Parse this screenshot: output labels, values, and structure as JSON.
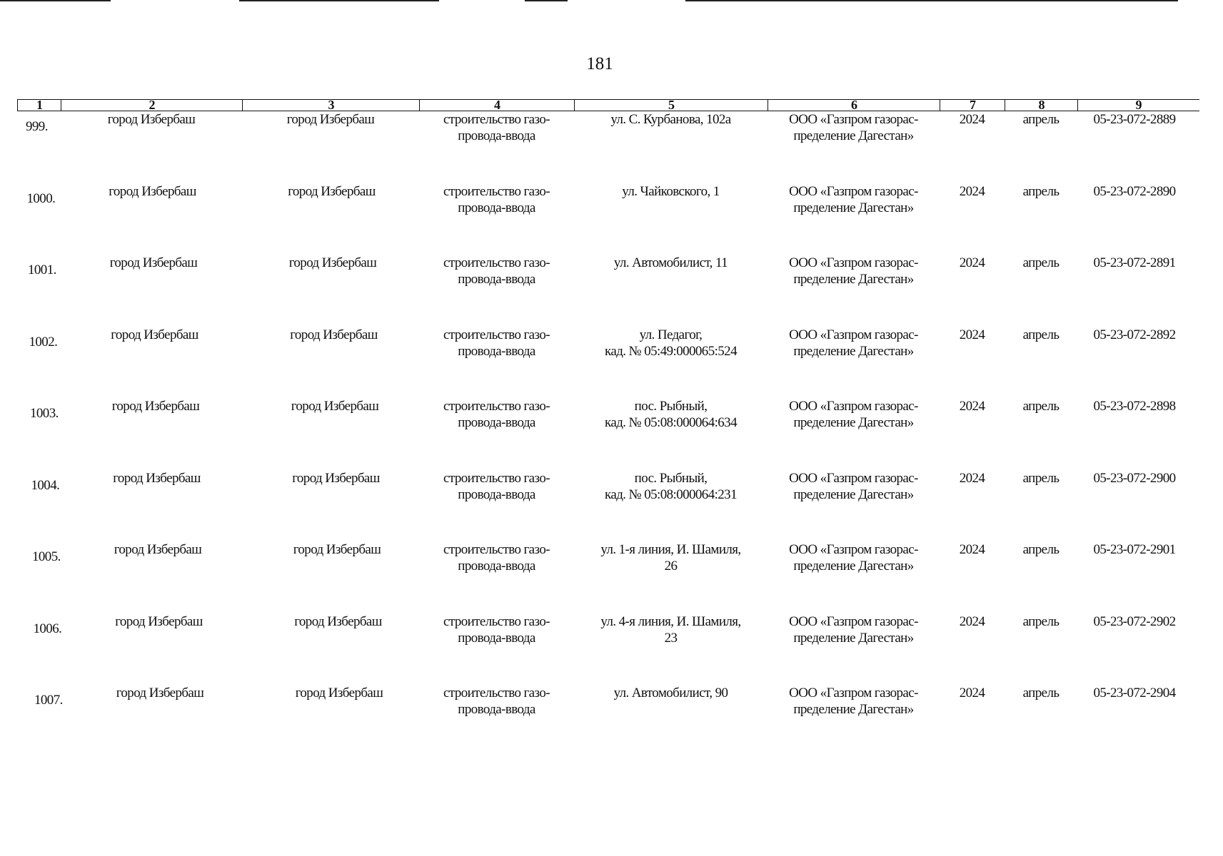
{
  "page_number": "181",
  "table": {
    "headers": [
      "1",
      "2",
      "3",
      "4",
      "5",
      "6",
      "7",
      "8",
      "9"
    ],
    "rows": [
      [
        "999.",
        "город Избербаш",
        "город Избербаш",
        "строительство газо-\nпровода-ввода",
        "ул. С. Курбанова, 102а",
        "ООО «Газпром газорас-\nпределение Дагестан»",
        "2024",
        "апрель",
        "05-23-072-2889"
      ],
      [
        "1000.",
        "город Избербаш",
        "город Избербаш",
        "строительство газо-\nпровода-ввода",
        "ул. Чайковского, 1",
        "ООО «Газпром газорас-\nпределение Дагестан»",
        "2024",
        "апрель",
        "05-23-072-2890"
      ],
      [
        "1001.",
        "город Избербаш",
        "город Избербаш",
        "строительство газо-\nпровода-ввода",
        "ул. Автомобилист, 11",
        "ООО «Газпром газорас-\nпределение Дагестан»",
        "2024",
        "апрель",
        "05-23-072-2891"
      ],
      [
        "1002.",
        "город Избербаш",
        "город Избербаш",
        "строительство газо-\nпровода-ввода",
        "ул. Педагог,\nкад. № 05:49:000065:524",
        "ООО «Газпром газорас-\nпределение Дагестан»",
        "2024",
        "апрель",
        "05-23-072-2892"
      ],
      [
        "1003.",
        "город Избербаш",
        "город Избербаш",
        "строительство газо-\nпровода-ввода",
        "пос. Рыбный,\nкад. № 05:08:000064:634",
        "ООО «Газпром газорас-\nпределение Дагестан»",
        "2024",
        "апрель",
        "05-23-072-2898"
      ],
      [
        "1004.",
        "город Избербаш",
        "город Избербаш",
        "строительство газо-\nпровода-ввода",
        "пос. Рыбный,\nкад. № 05:08:000064:231",
        "ООО «Газпром газорас-\nпределение Дагестан»",
        "2024",
        "апрель",
        "05-23-072-2900"
      ],
      [
        "1005.",
        "город Избербаш",
        "город Избербаш",
        "строительство газо-\nпровода-ввода",
        "ул. 1-я линия, И. Шамиля,\n26",
        "ООО «Газпром газорас-\nпределение Дагестан»",
        "2024",
        "апрель",
        "05-23-072-2901"
      ],
      [
        "1006.",
        "город Избербаш",
        "город Избербаш",
        "строительство газо-\nпровода-ввода",
        "ул. 4-я линия, И. Шамиля,\n23",
        "ООО «Газпром газорас-\nпределение Дагестан»",
        "2024",
        "апрель",
        "05-23-072-2902"
      ],
      [
        "1007.",
        "город Избербаш",
        "город Избербаш",
        "строительство газо-\nпровода-ввода",
        "ул. Автомобилист, 90",
        "ООО «Газпром газорас-\nпределение Дагестан»",
        "2024",
        "апрель",
        "05-23-072-2904"
      ]
    ]
  }
}
